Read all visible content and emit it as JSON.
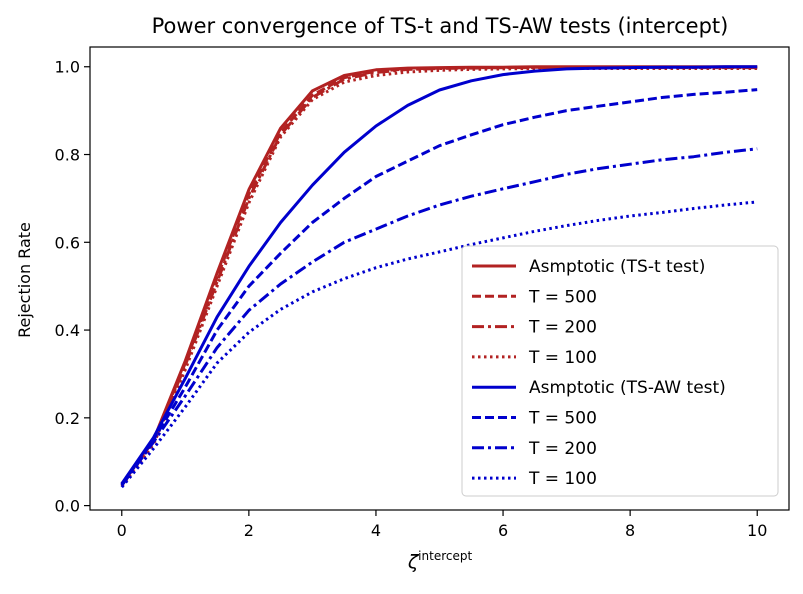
{
  "chart_data": {
    "type": "line",
    "title": "Power convergence of TS-t and TS-AW tests (intercept)",
    "xlabel_base": "ζ",
    "xlabel_sup": "intercept",
    "ylabel": "Rejection Rate",
    "xlim": [
      -0.5,
      10.5
    ],
    "ylim": [
      -0.01,
      1.045
    ],
    "xticks": [
      0,
      2,
      4,
      6,
      8,
      10
    ],
    "yticks": [
      0.0,
      0.2,
      0.4,
      0.6,
      0.8,
      1.0
    ],
    "xtick_labels": [
      "0",
      "2",
      "4",
      "6",
      "8",
      "10"
    ],
    "ytick_labels": [
      "0.0",
      "0.2",
      "0.4",
      "0.6",
      "0.8",
      "1.0"
    ],
    "grid": false,
    "legend_position": "lower-right",
    "x": [
      0,
      0.5,
      1,
      1.5,
      2,
      2.5,
      3,
      3.5,
      4,
      4.5,
      5,
      5.5,
      6,
      6.5,
      7,
      7.5,
      8,
      8.5,
      9,
      9.5,
      10
    ],
    "series": [
      {
        "name": "Asmptotic (TS-t test)",
        "color": "#b22222",
        "dash": "solid",
        "values": [
          0.05,
          0.15,
          0.33,
          0.53,
          0.72,
          0.86,
          0.945,
          0.98,
          0.993,
          0.997,
          0.998,
          0.999,
          0.999,
          1.0,
          1.0,
          1.0,
          1.0,
          1.0,
          1.0,
          1.0,
          1.0
        ]
      },
      {
        "name": "T = 500",
        "color": "#b22222",
        "dash": "dashed",
        "values": [
          0.048,
          0.148,
          0.325,
          0.52,
          0.71,
          0.85,
          0.935,
          0.975,
          0.99,
          0.995,
          0.997,
          0.998,
          0.998,
          0.999,
          0.999,
          0.999,
          0.999,
          0.999,
          0.999,
          0.999,
          0.999
        ]
      },
      {
        "name": "T = 200",
        "color": "#b22222",
        "dash": "dashdot",
        "values": [
          0.046,
          0.145,
          0.32,
          0.51,
          0.7,
          0.845,
          0.93,
          0.972,
          0.987,
          0.994,
          0.996,
          0.997,
          0.998,
          0.998,
          0.998,
          0.998,
          0.998,
          0.998,
          0.998,
          0.998,
          0.998
        ]
      },
      {
        "name": "T = 100",
        "color": "#b22222",
        "dash": "dotted",
        "values": [
          0.044,
          0.14,
          0.31,
          0.5,
          0.69,
          0.84,
          0.925,
          0.965,
          0.98,
          0.988,
          0.992,
          0.994,
          0.995,
          0.996,
          0.996,
          0.996,
          0.996,
          0.996,
          0.996,
          0.996,
          0.996
        ]
      },
      {
        "name": "Asmptotic (TS-AW test)",
        "color": "#0000cd",
        "dash": "solid",
        "values": [
          0.05,
          0.155,
          0.29,
          0.43,
          0.545,
          0.645,
          0.73,
          0.805,
          0.865,
          0.912,
          0.947,
          0.968,
          0.982,
          0.99,
          0.995,
          0.997,
          0.998,
          0.999,
          0.999,
          1.0,
          1.0
        ]
      },
      {
        "name": "T = 500",
        "color": "#0000cd",
        "dash": "dashed",
        "values": [
          0.048,
          0.15,
          0.27,
          0.4,
          0.5,
          0.575,
          0.645,
          0.7,
          0.75,
          0.785,
          0.82,
          0.845,
          0.868,
          0.885,
          0.9,
          0.91,
          0.92,
          0.93,
          0.937,
          0.942,
          0.948
        ]
      },
      {
        "name": "T = 200",
        "color": "#0000cd",
        "dash": "dashdot",
        "values": [
          0.046,
          0.145,
          0.25,
          0.36,
          0.445,
          0.505,
          0.555,
          0.6,
          0.63,
          0.66,
          0.685,
          0.705,
          0.722,
          0.738,
          0.755,
          0.768,
          0.778,
          0.788,
          0.795,
          0.805,
          0.813
        ]
      },
      {
        "name": "T = 100",
        "color": "#0000cd",
        "dash": "dotted",
        "values": [
          0.042,
          0.13,
          0.225,
          0.325,
          0.395,
          0.447,
          0.487,
          0.517,
          0.542,
          0.562,
          0.578,
          0.595,
          0.61,
          0.625,
          0.638,
          0.65,
          0.66,
          0.668,
          0.677,
          0.685,
          0.692
        ]
      }
    ]
  }
}
